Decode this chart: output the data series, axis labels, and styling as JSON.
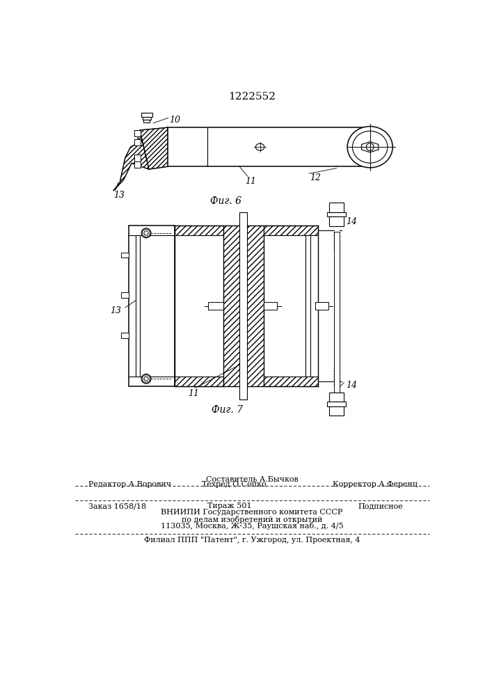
{
  "title_number": "1222552",
  "fig6_label": "Фиг. 6",
  "fig7_label": "Фиг. 7",
  "bg_color": "#ffffff",
  "line_color": "#000000",
  "label_10": "10",
  "label_11_fig6": "11",
  "label_12": "12",
  "label_13_fig6": "13",
  "label_11_fig7": "11",
  "label_13_fig7": "13",
  "label_14_top": "14",
  "label_14_bot": "14",
  "footer_line1_left": "Редактор А.Ворович",
  "footer_line1_center": "Составитель А.Бычков",
  "footer_line2_center": "Техред О.Сопко",
  "footer_line2_right": "Корректор А.Ференц",
  "footer_line3_a": "Заказ 1658/18",
  "footer_line3_b": "Тираж 501",
  "footer_line3_c": "Подписное",
  "footer_line4": "ВНИИПИ Государственного комитета СССР",
  "footer_line5": "по делам изобретений и открытий",
  "footer_line6": "113035, Москва, Ж-35, Раушская наб., д. 4/5",
  "footer_line7": "Филиал ППП \"Патент\", г. Ужгород, ул. Проектная, 4"
}
